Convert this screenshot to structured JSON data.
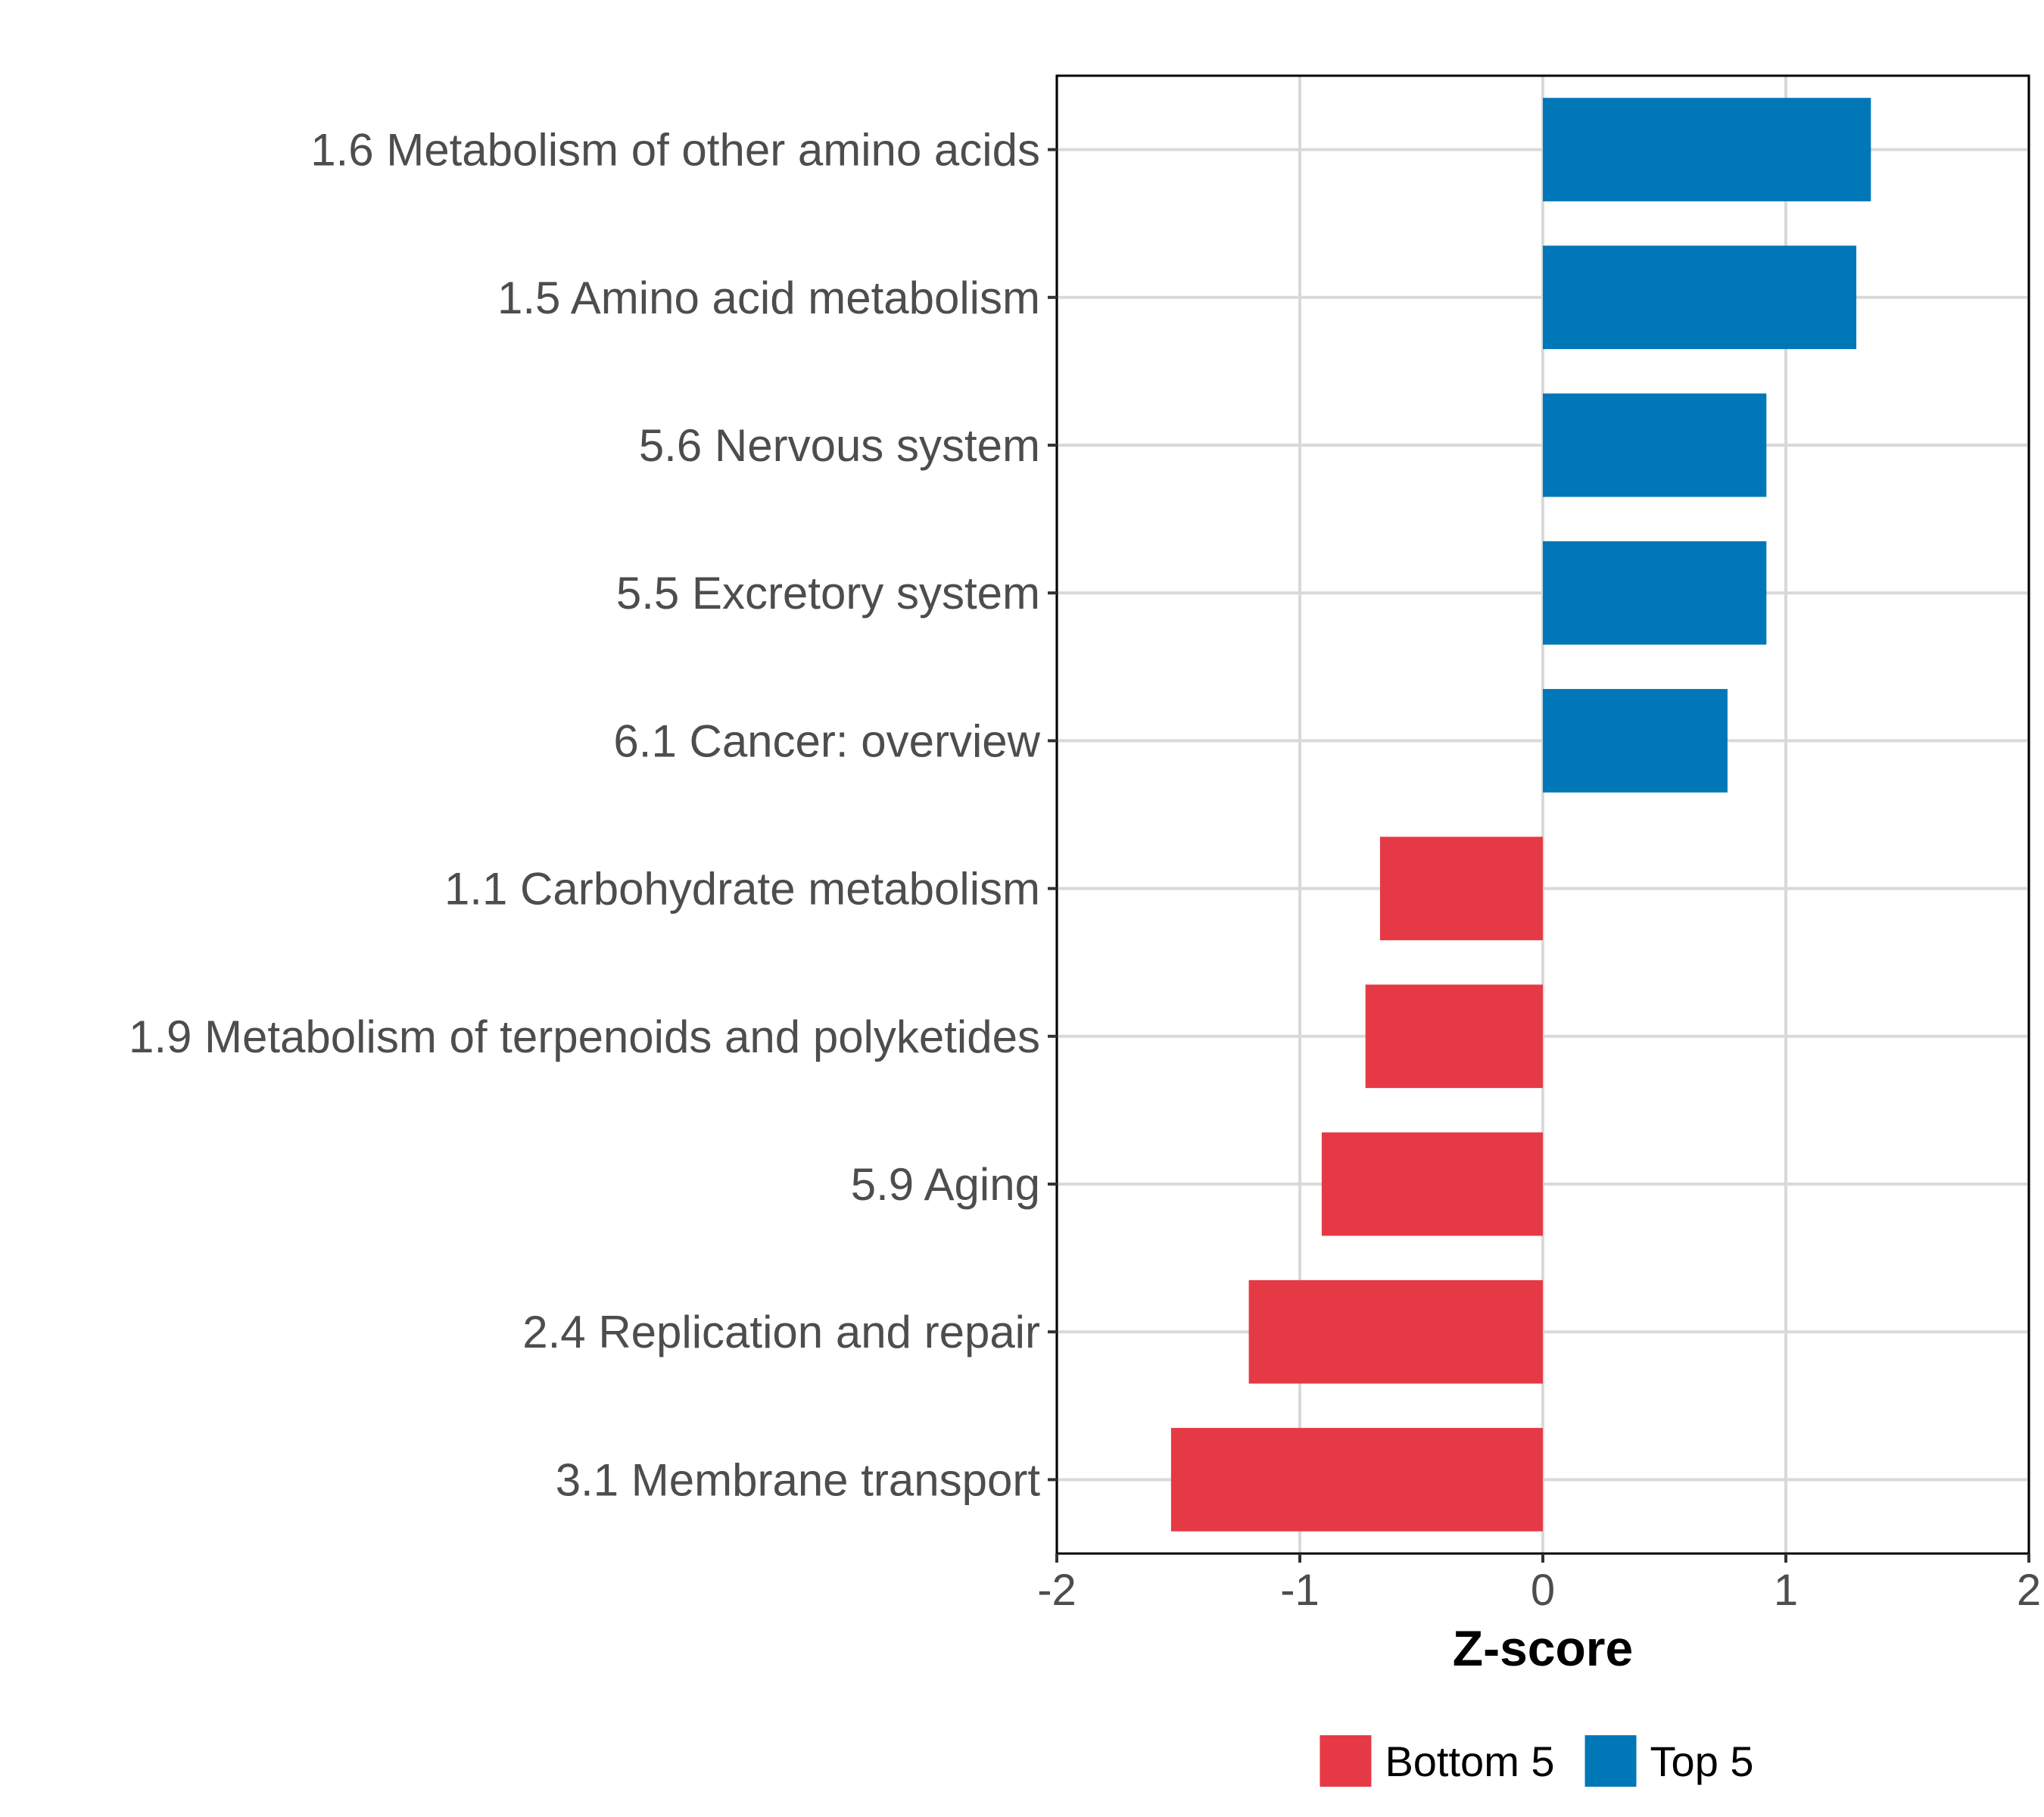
{
  "chart_data": {
    "type": "bar",
    "orientation": "horizontal",
    "title": "",
    "xlabel": "Z-score",
    "ylabel": "",
    "xlim": [
      -2,
      2
    ],
    "xticks": [
      -2,
      -1,
      0,
      1,
      2
    ],
    "xtick_labels": [
      "-2",
      "-1",
      "0",
      "1",
      "2"
    ],
    "grid": true,
    "legend_position": "bottom",
    "categories": [
      "1.6 Metabolism of other amino acids",
      "1.5 Amino acid metabolism",
      "5.6 Nervous system",
      "5.5 Excretory system",
      "6.1 Cancer: overview",
      "1.1 Carbohydrate metabolism",
      "1.9 Metabolism of terpenoids and polyketides",
      "5.9 Aging",
      "2.4 Replication and repair",
      "3.1 Membrane transport"
    ],
    "values": [
      1.35,
      1.29,
      0.92,
      0.92,
      0.76,
      -0.67,
      -0.73,
      -0.91,
      -1.21,
      -1.53
    ],
    "groups": [
      "Top 5",
      "Top 5",
      "Top 5",
      "Top 5",
      "Top 5",
      "Bottom 5",
      "Bottom 5",
      "Bottom 5",
      "Bottom 5",
      "Bottom 5"
    ],
    "legend": [
      {
        "name": "Bottom 5",
        "color": "#e63946"
      },
      {
        "name": "Top 5",
        "color": "#0077b6"
      }
    ]
  }
}
